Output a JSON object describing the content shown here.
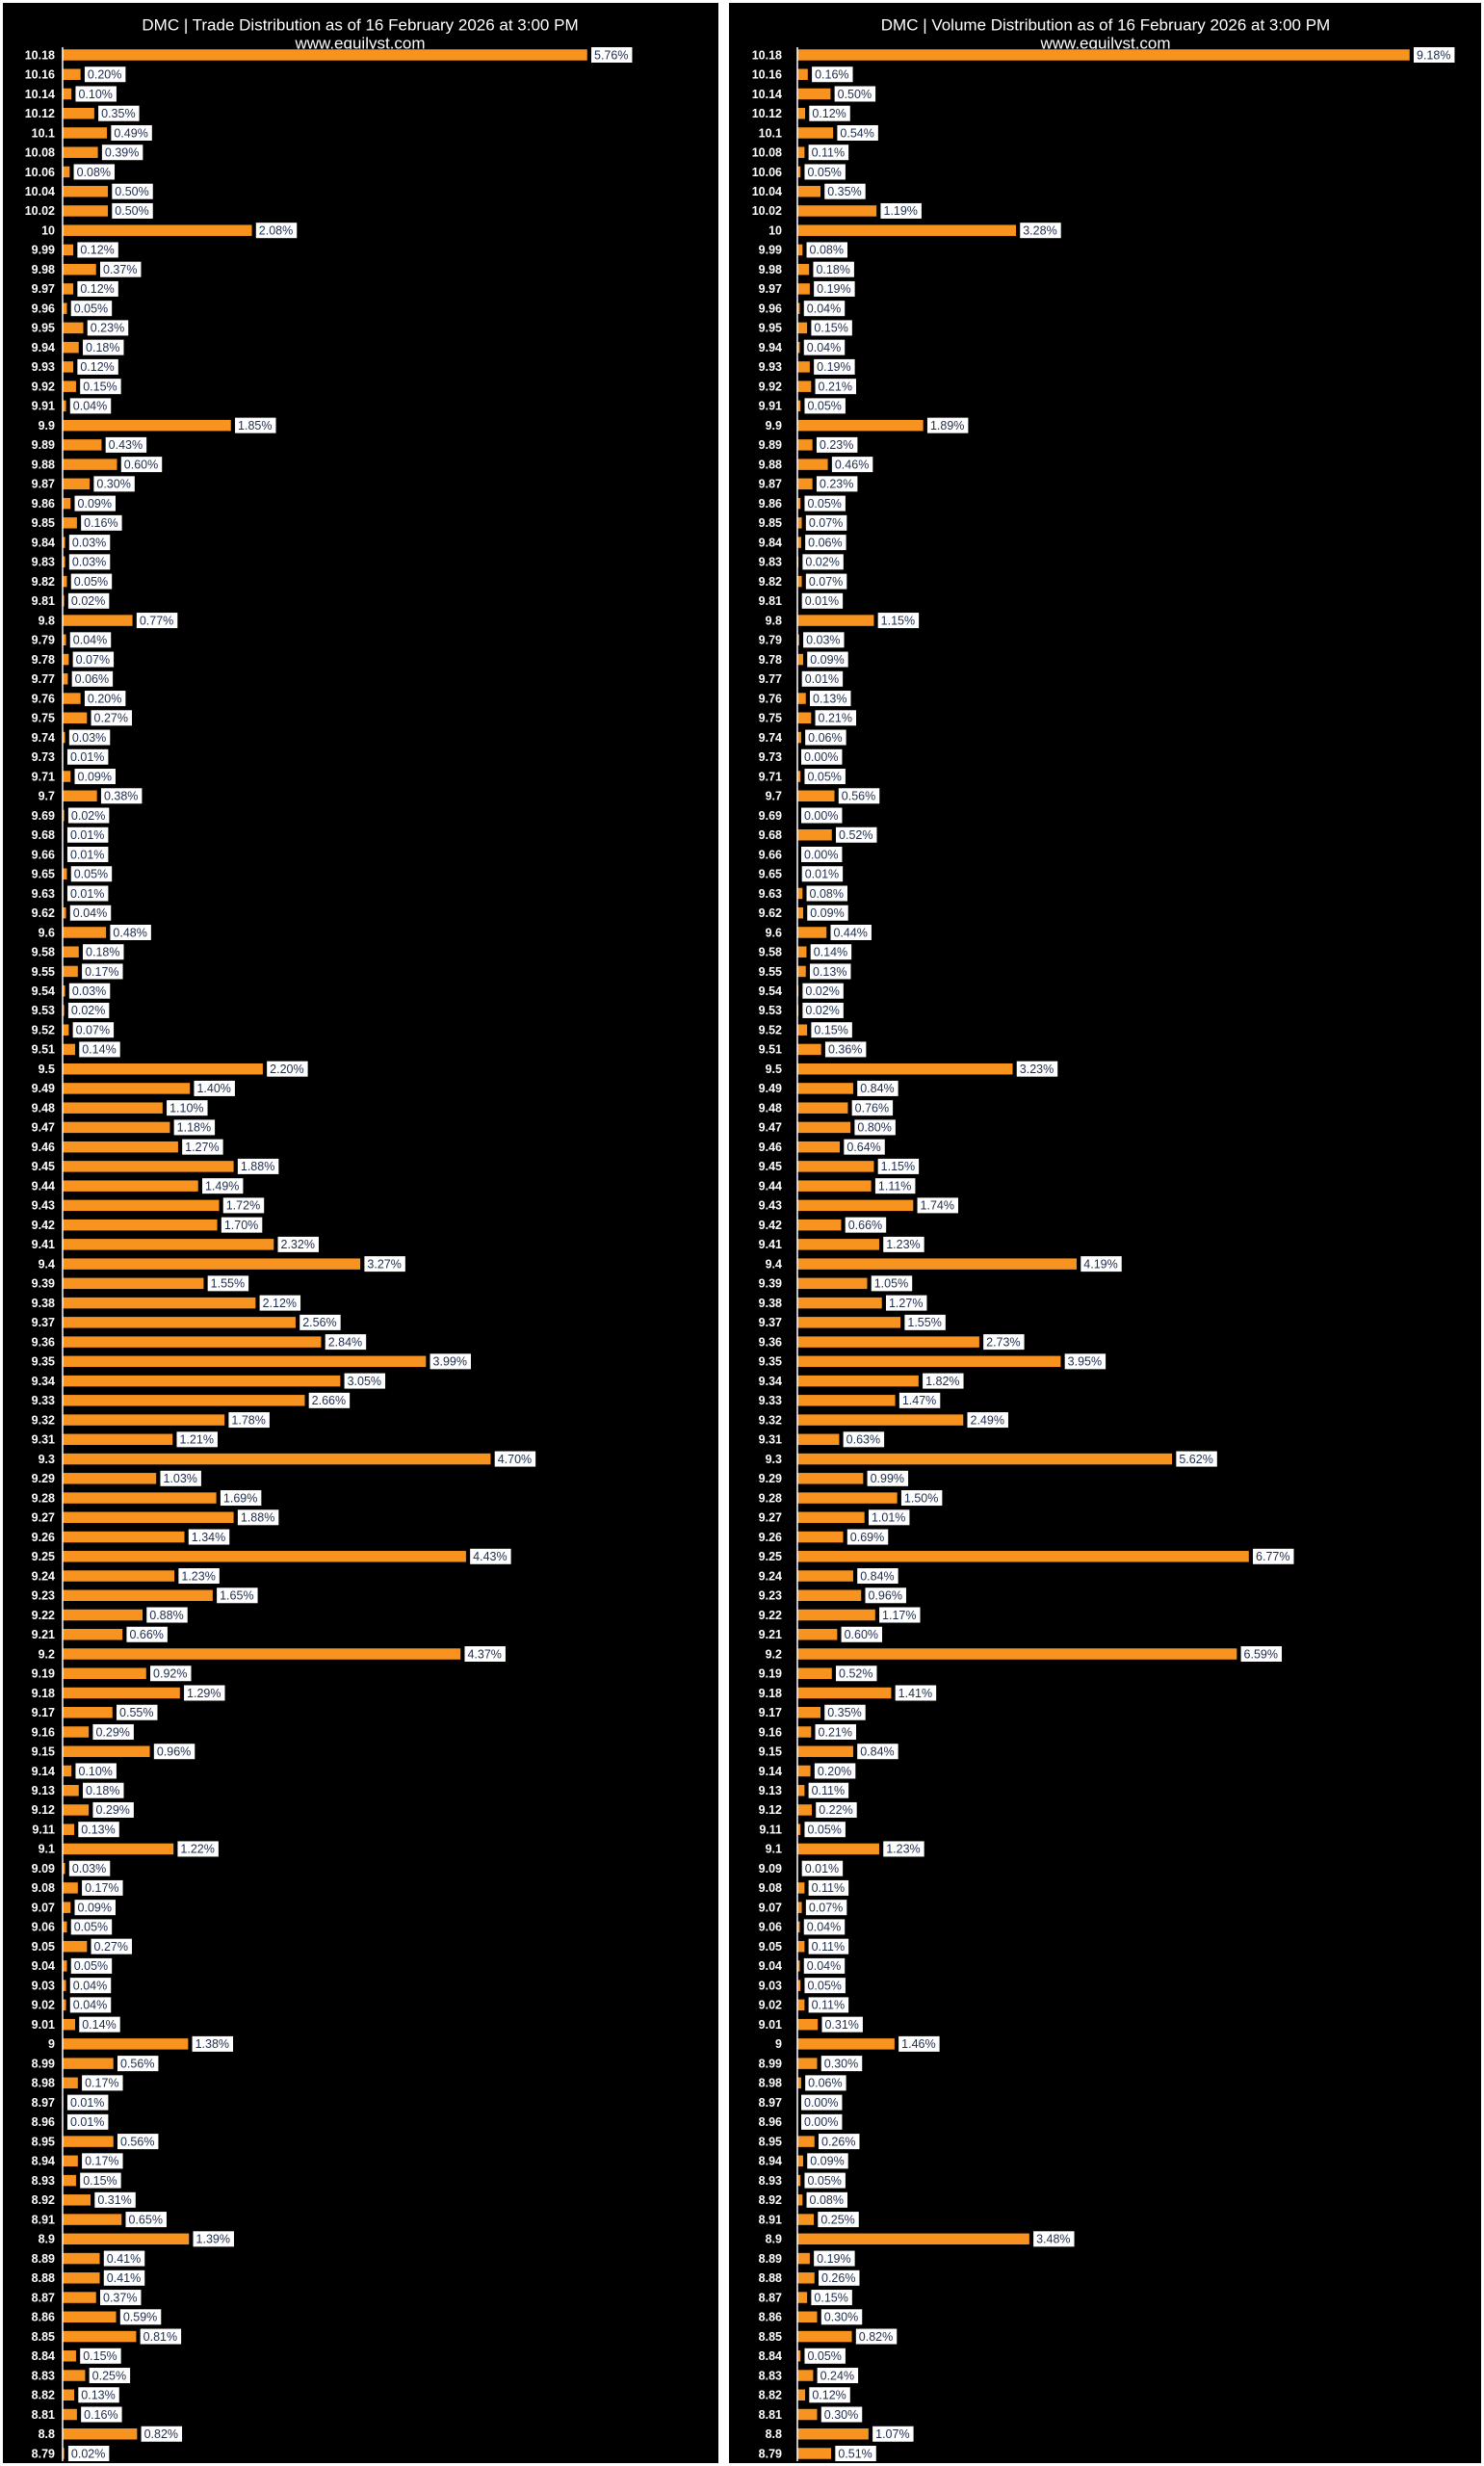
{
  "chart_data": [
    {
      "type": "bar",
      "title": "DMC | Trade Distribution as of 16 February 2026 at 3:00 PM",
      "subtitle": "www.equilyst.com",
      "color": "#f7931e",
      "categories": [
        "10.18",
        "10.16",
        "10.14",
        "10.12",
        "10.1",
        "10.08",
        "10.06",
        "10.04",
        "10.02",
        "10",
        "9.99",
        "9.98",
        "9.97",
        "9.96",
        "9.95",
        "9.94",
        "9.93",
        "9.92",
        "9.91",
        "9.9",
        "9.89",
        "9.88",
        "9.87",
        "9.86",
        "9.85",
        "9.84",
        "9.83",
        "9.82",
        "9.81",
        "9.8",
        "9.79",
        "9.78",
        "9.77",
        "9.76",
        "9.75",
        "9.74",
        "9.73",
        "9.71",
        "9.7",
        "9.69",
        "9.68",
        "9.66",
        "9.65",
        "9.63",
        "9.62",
        "9.6",
        "9.58",
        "9.55",
        "9.54",
        "9.53",
        "9.52",
        "9.51",
        "9.5",
        "9.49",
        "9.48",
        "9.47",
        "9.46",
        "9.45",
        "9.44",
        "9.43",
        "9.42",
        "9.41",
        "9.4",
        "9.39",
        "9.38",
        "9.37",
        "9.36",
        "9.35",
        "9.34",
        "9.33",
        "9.32",
        "9.31",
        "9.3",
        "9.29",
        "9.28",
        "9.27",
        "9.26",
        "9.25",
        "9.24",
        "9.23",
        "9.22",
        "9.21",
        "9.2",
        "9.19",
        "9.18",
        "9.17",
        "9.16",
        "9.15",
        "9.14",
        "9.13",
        "9.12",
        "9.11",
        "9.1",
        "9.09",
        "9.08",
        "9.07",
        "9.06",
        "9.05",
        "9.04",
        "9.03",
        "9.02",
        "9.01",
        "9",
        "8.99",
        "8.98",
        "8.97",
        "8.96",
        "8.95",
        "8.94",
        "8.93",
        "8.92",
        "8.91",
        "8.9",
        "8.89",
        "8.88",
        "8.87",
        "8.86",
        "8.85",
        "8.84",
        "8.83",
        "8.82",
        "8.81",
        "8.8",
        "8.79"
      ],
      "values": [
        5.76,
        0.2,
        0.1,
        0.35,
        0.49,
        0.39,
        0.08,
        0.5,
        0.5,
        2.08,
        0.12,
        0.37,
        0.12,
        0.05,
        0.23,
        0.18,
        0.12,
        0.15,
        0.04,
        1.85,
        0.43,
        0.6,
        0.3,
        0.09,
        0.16,
        0.03,
        0.03,
        0.05,
        0.02,
        0.77,
        0.04,
        0.07,
        0.06,
        0.2,
        0.27,
        0.03,
        0.01,
        0.09,
        0.38,
        0.02,
        0.01,
        0.01,
        0.05,
        0.01,
        0.04,
        0.48,
        0.18,
        0.17,
        0.03,
        0.02,
        0.07,
        0.14,
        2.2,
        1.4,
        1.1,
        1.18,
        1.27,
        1.88,
        1.49,
        1.72,
        1.7,
        2.32,
        3.27,
        1.55,
        2.12,
        2.56,
        2.84,
        3.99,
        3.05,
        2.66,
        1.78,
        1.21,
        4.7,
        1.03,
        1.69,
        1.88,
        1.34,
        4.43,
        1.23,
        1.65,
        0.88,
        0.66,
        4.37,
        0.92,
        1.29,
        0.55,
        0.29,
        0.96,
        0.1,
        0.18,
        0.29,
        0.13,
        1.22,
        0.03,
        0.17,
        0.09,
        0.05,
        0.27,
        0.05,
        0.04,
        0.04,
        0.14,
        1.38,
        0.56,
        0.17,
        0.01,
        0.01,
        0.56,
        0.17,
        0.15,
        0.31,
        0.65,
        1.39,
        0.41,
        0.41,
        0.37,
        0.59,
        0.81,
        0.15,
        0.25,
        0.13,
        0.16,
        0.82,
        0.02
      ],
      "value_labels": [
        "5.76%",
        "0.20%",
        "0.10%",
        "0.35%",
        "0.49%",
        "0.39%",
        "0.08%",
        "0.50%",
        "0.50%",
        "2.08%",
        "0.12%",
        "0.37%",
        "0.12%",
        "0.05%",
        "0.23%",
        "0.18%",
        "0.12%",
        "0.15%",
        "0.04%",
        "1.85%",
        "0.43%",
        "0.60%",
        "0.30%",
        "0.09%",
        "0.16%",
        "0.03%",
        "0.03%",
        "0.05%",
        "0.02%",
        "0.77%",
        "0.04%",
        "0.07%",
        "0.06%",
        "0.20%",
        "0.27%",
        "0.03%",
        "0.01%",
        "0.09%",
        "0.38%",
        "0.02%",
        "0.01%",
        "0.01%",
        "0.05%",
        "0.01%",
        "0.04%",
        "0.48%",
        "0.18%",
        "0.17%",
        "0.03%",
        "0.02%",
        "0.07%",
        "0.14%",
        "2.20%",
        "1.40%",
        "1.10%",
        "1.18%",
        "1.27%",
        "1.88%",
        "1.49%",
        "1.72%",
        "1.70%",
        "2.32%",
        "3.27%",
        "1.55%",
        "2.12%",
        "2.56%",
        "2.84%",
        "3.99%",
        "3.05%",
        "2.66%",
        "1.78%",
        "1.21%",
        "4.70%",
        "1.03%",
        "1.69%",
        "1.88%",
        "1.34%",
        "4.43%",
        "1.23%",
        "1.65%",
        "0.88%",
        "0.66%",
        "4.37%",
        "0.92%",
        "1.29%",
        "0.55%",
        "0.29%",
        "0.96%",
        "0.10%",
        "0.18%",
        "0.29%",
        "0.13%",
        "1.22%",
        "0.03%",
        "0.17%",
        "0.09%",
        "0.05%",
        "0.27%",
        "0.05%",
        "0.04%",
        "0.04%",
        "0.14%",
        "1.38%",
        "0.56%",
        "0.17%",
        "0.01%",
        "0.01%",
        "0.56%",
        "0.17%",
        "0.15%",
        "0.31%",
        "0.65%",
        "1.39%",
        "0.41%",
        "0.41%",
        "0.37%",
        "0.59%",
        "0.81%",
        "0.15%",
        "0.25%",
        "0.13%",
        "0.16%",
        "0.82%",
        "0.02%"
      ]
    },
    {
      "type": "bar",
      "title": "DMC | Volume Distribution as of 16 February 2026 at 3:00 PM",
      "subtitle": "www.equilyst.com",
      "color": "#f7931e",
      "categories": [
        "10.18",
        "10.16",
        "10.14",
        "10.12",
        "10.1",
        "10.08",
        "10.06",
        "10.04",
        "10.02",
        "10",
        "9.99",
        "9.98",
        "9.97",
        "9.96",
        "9.95",
        "9.94",
        "9.93",
        "9.92",
        "9.91",
        "9.9",
        "9.89",
        "9.88",
        "9.87",
        "9.86",
        "9.85",
        "9.84",
        "9.83",
        "9.82",
        "9.81",
        "9.8",
        "9.79",
        "9.78",
        "9.77",
        "9.76",
        "9.75",
        "9.74",
        "9.73",
        "9.71",
        "9.7",
        "9.69",
        "9.68",
        "9.66",
        "9.65",
        "9.63",
        "9.62",
        "9.6",
        "9.58",
        "9.55",
        "9.54",
        "9.53",
        "9.52",
        "9.51",
        "9.5",
        "9.49",
        "9.48",
        "9.47",
        "9.46",
        "9.45",
        "9.44",
        "9.43",
        "9.42",
        "9.41",
        "9.4",
        "9.39",
        "9.38",
        "9.37",
        "9.36",
        "9.35",
        "9.34",
        "9.33",
        "9.32",
        "9.31",
        "9.3",
        "9.29",
        "9.28",
        "9.27",
        "9.26",
        "9.25",
        "9.24",
        "9.23",
        "9.22",
        "9.21",
        "9.2",
        "9.19",
        "9.18",
        "9.17",
        "9.16",
        "9.15",
        "9.14",
        "9.13",
        "9.12",
        "9.11",
        "9.1",
        "9.09",
        "9.08",
        "9.07",
        "9.06",
        "9.05",
        "9.04",
        "9.03",
        "9.02",
        "9.01",
        "9",
        "8.99",
        "8.98",
        "8.97",
        "8.96",
        "8.95",
        "8.94",
        "8.93",
        "8.92",
        "8.91",
        "8.9",
        "8.89",
        "8.88",
        "8.87",
        "8.86",
        "8.85",
        "8.84",
        "8.83",
        "8.82",
        "8.81",
        "8.8",
        "8.79"
      ],
      "values": [
        9.18,
        0.16,
        0.5,
        0.12,
        0.54,
        0.11,
        0.05,
        0.35,
        1.19,
        3.28,
        0.08,
        0.18,
        0.19,
        0.04,
        0.15,
        0.04,
        0.19,
        0.21,
        0.05,
        1.89,
        0.23,
        0.46,
        0.23,
        0.05,
        0.07,
        0.06,
        0.02,
        0.07,
        0.01,
        1.15,
        0.03,
        0.09,
        0.01,
        0.13,
        0.21,
        0.06,
        0.0,
        0.05,
        0.56,
        0.0,
        0.52,
        0.0,
        0.01,
        0.08,
        0.09,
        0.44,
        0.14,
        0.13,
        0.02,
        0.02,
        0.15,
        0.36,
        3.23,
        0.84,
        0.76,
        0.8,
        0.64,
        1.15,
        1.11,
        1.74,
        0.66,
        1.23,
        4.19,
        1.05,
        1.27,
        1.55,
        2.73,
        3.95,
        1.82,
        1.47,
        2.49,
        0.63,
        5.62,
        0.99,
        1.5,
        1.01,
        0.69,
        6.77,
        0.84,
        0.96,
        1.17,
        0.6,
        6.59,
        0.52,
        1.41,
        0.35,
        0.21,
        0.84,
        0.2,
        0.11,
        0.22,
        0.05,
        1.23,
        0.01,
        0.11,
        0.07,
        0.04,
        0.11,
        0.04,
        0.05,
        0.11,
        0.31,
        1.46,
        0.3,
        0.06,
        0.0,
        0.0,
        0.26,
        0.09,
        0.05,
        0.08,
        0.25,
        3.48,
        0.19,
        0.26,
        0.15,
        0.3,
        0.82,
        0.05,
        0.24,
        0.12,
        0.3,
        1.07,
        0.51
      ],
      "value_labels": [
        "9.18%",
        "0.16%",
        "0.50%",
        "0.12%",
        "0.54%",
        "0.11%",
        "0.05%",
        "0.35%",
        "1.19%",
        "3.28%",
        "0.08%",
        "0.18%",
        "0.19%",
        "0.04%",
        "0.15%",
        "0.04%",
        "0.19%",
        "0.21%",
        "0.05%",
        "1.89%",
        "0.23%",
        "0.46%",
        "0.23%",
        "0.05%",
        "0.07%",
        "0.06%",
        "0.02%",
        "0.07%",
        "0.01%",
        "1.15%",
        "0.03%",
        "0.09%",
        "0.01%",
        "0.13%",
        "0.21%",
        "0.06%",
        "0.00%",
        "0.05%",
        "0.56%",
        "0.00%",
        "0.52%",
        "0.00%",
        "0.01%",
        "0.08%",
        "0.09%",
        "0.44%",
        "0.14%",
        "0.13%",
        "0.02%",
        "0.02%",
        "0.15%",
        "0.36%",
        "3.23%",
        "0.84%",
        "0.76%",
        "0.80%",
        "0.64%",
        "1.15%",
        "1.11%",
        "1.74%",
        "0.66%",
        "1.23%",
        "4.19%",
        "1.05%",
        "1.27%",
        "1.55%",
        "2.73%",
        "3.95%",
        "1.82%",
        "1.47%",
        "2.49%",
        "0.63%",
        "5.62%",
        "0.99%",
        "1.50%",
        "1.01%",
        "0.69%",
        "6.77%",
        "0.84%",
        "0.96%",
        "1.17%",
        "0.60%",
        "6.59%",
        "0.52%",
        "1.41%",
        "0.35%",
        "0.21%",
        "0.84%",
        "0.20%",
        "0.11%",
        "0.22%",
        "0.05%",
        "1.23%",
        "0.01%",
        "0.11%",
        "0.07%",
        "0.04%",
        "0.11%",
        "0.04%",
        "0.05%",
        "0.11%",
        "0.31%",
        "1.46%",
        "0.30%",
        "0.06%",
        "0.00%",
        "0.00%",
        "0.26%",
        "0.09%",
        "0.05%",
        "0.08%",
        "0.25%",
        "3.48%",
        "0.19%",
        "0.26%",
        "0.15%",
        "0.30%",
        "0.82%",
        "0.05%",
        "0.24%",
        "0.12%",
        "0.30%",
        "1.07%",
        "0.51%"
      ]
    }
  ]
}
